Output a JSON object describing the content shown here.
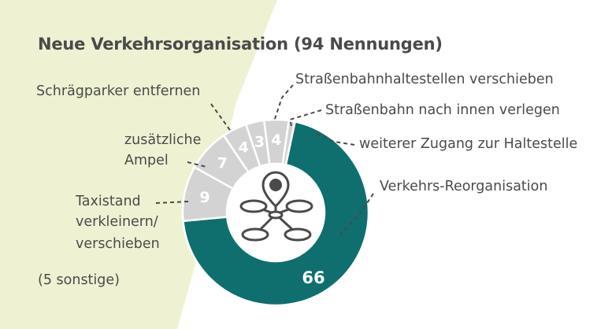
{
  "chart_data": {
    "type": "pie",
    "title": "Neue Verkehrsorganisation (94 Nennungen)",
    "slices": [
      {
        "label": "Verkehrs-Reorganisation",
        "value": 66
      },
      {
        "label": "Taxistand verkleinern/ verschieben",
        "value": 9
      },
      {
        "label": "zusätzliche Ampel",
        "value": 7
      },
      {
        "label": "Schrägparker entfernen",
        "value": 4
      },
      {
        "label": "Straßenbahnhaltestellen verschieben",
        "value": 3
      },
      {
        "label": "Straßenbahn nach innen verlegen",
        "value": 4
      },
      {
        "label": "weiterer Zugang zur Haltestelle",
        "value": 1
      }
    ],
    "footnote": "(5 sonstige)",
    "colors": {
      "main": "#0e6f6e",
      "minor": "#d3d3d3",
      "background": "#eef2d3",
      "text": "#4a4a4a",
      "icon": "#4a4a4a"
    }
  },
  "labels": {
    "schraeg": "Schrägparker entfernen",
    "ampel_1": "zusätzliche",
    "ampel_2": "Ampel",
    "taxi_1": "Taxistand",
    "taxi_2": "verkleinern/",
    "taxi_3": "verschieben",
    "hst": "Straßenbahnhaltestellen verschieben",
    "innen": "Straßenbahn nach innen verlegen",
    "zugang": "weiterer Zugang zur Haltestelle",
    "reorg": "Verkehrs-Reorganisation"
  },
  "icon": "network-location-icon"
}
